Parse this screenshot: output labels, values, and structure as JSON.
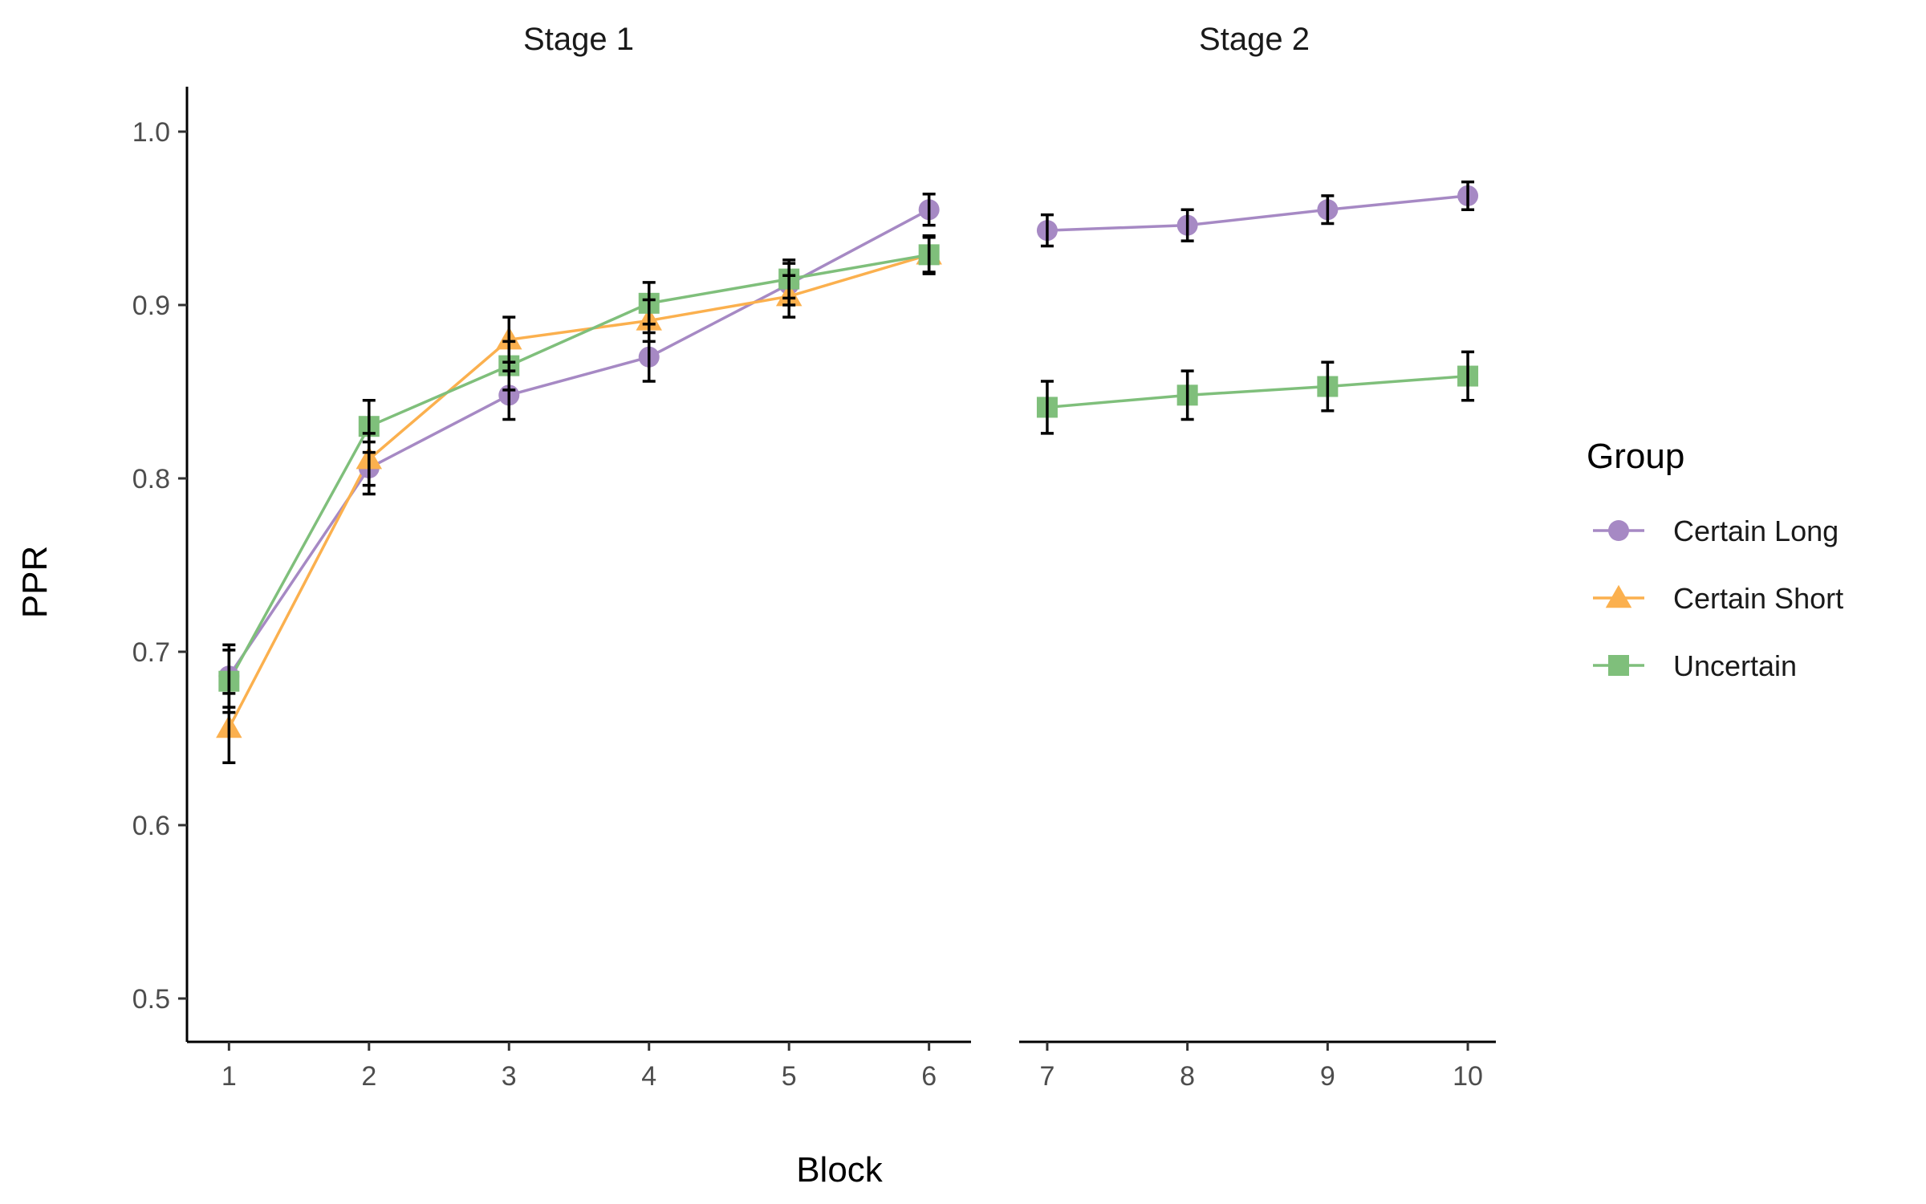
{
  "chart_data": {
    "type": "line",
    "xlabel": "Block",
    "ylabel": "PPR",
    "ylim": [
      0.475,
      1.025
    ],
    "yticks": [
      "0.5",
      "0.6",
      "0.7",
      "0.8",
      "0.9",
      "1.0"
    ],
    "grid": false,
    "legend": {
      "title": "Group",
      "placement": "right",
      "entries": [
        "Certain Long",
        "Certain Short",
        "Uncertain"
      ]
    },
    "facets": [
      {
        "title": "Stage 1",
        "x": [
          1,
          2,
          3,
          4,
          5,
          6
        ],
        "xlim": [
          0.7,
          6.3
        ],
        "series": [
          {
            "name": "Certain Long",
            "color": "#a689c4",
            "marker": "circle",
            "y": [
              0.686,
              0.806,
              0.848,
              0.87,
              0.912,
              0.955
            ],
            "err": [
              0.018,
              0.015,
              0.014,
              0.014,
              0.012,
              0.009
            ]
          },
          {
            "name": "Certain Short",
            "color": "#fbb04e",
            "marker": "triangle",
            "y": [
              0.656,
              0.811,
              0.88,
              0.891,
              0.905,
              0.929
            ],
            "err": [
              0.02,
              0.015,
              0.013,
              0.012,
              0.012,
              0.011
            ]
          },
          {
            "name": "Uncertain",
            "color": "#7fbf7b",
            "marker": "square",
            "y": [
              0.683,
              0.83,
              0.865,
              0.901,
              0.915,
              0.929
            ],
            "err": [
              0.018,
              0.015,
              0.014,
              0.012,
              0.011,
              0.01
            ]
          }
        ]
      },
      {
        "title": "Stage 2",
        "x": [
          7,
          8,
          9,
          10
        ],
        "xlim": [
          6.8,
          10.2
        ],
        "series": [
          {
            "name": "Certain Long",
            "color": "#a689c4",
            "marker": "circle",
            "y": [
              0.943,
              0.946,
              0.955,
              0.963
            ],
            "err": [
              0.009,
              0.009,
              0.008,
              0.008
            ]
          },
          {
            "name": "Uncertain",
            "color": "#7fbf7b",
            "marker": "square",
            "y": [
              0.841,
              0.848,
              0.853,
              0.859
            ],
            "err": [
              0.015,
              0.014,
              0.014,
              0.014
            ]
          }
        ]
      }
    ]
  }
}
